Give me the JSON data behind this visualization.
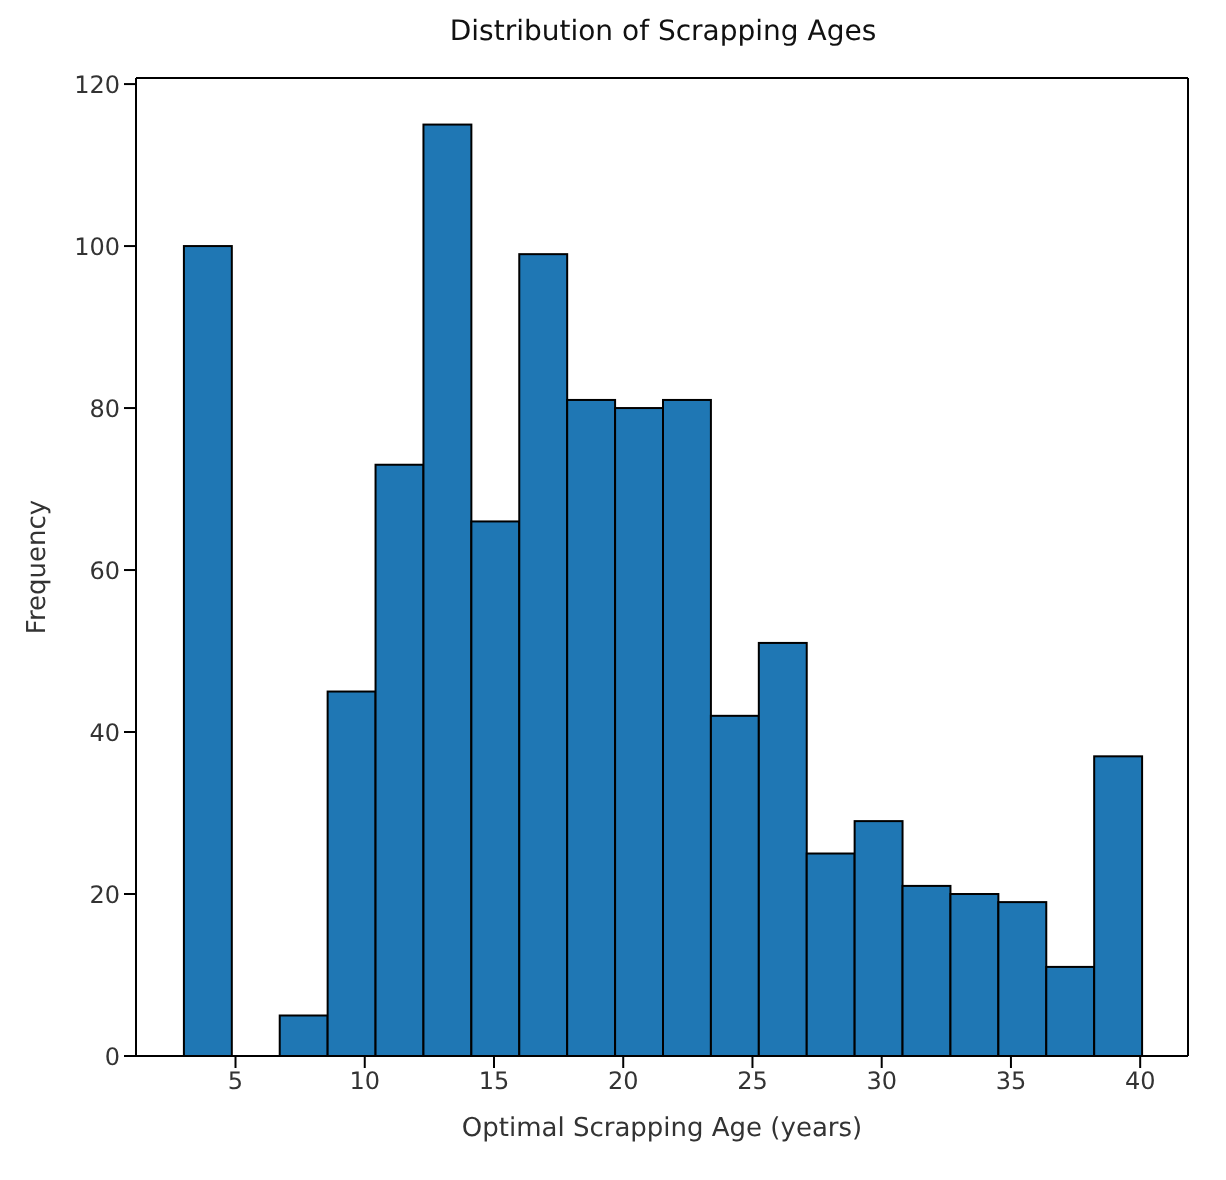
{
  "chart_data": {
    "type": "histogram",
    "title": "Distribution of Scrapping Ages",
    "xlabel": "Optimal Scrapping Age (years)",
    "ylabel": "Frequency",
    "color": "#1f77b4",
    "bins": [
      3,
      4.85,
      6.7,
      8.55,
      10.4,
      12.25,
      14.1,
      15.95,
      17.8,
      19.65,
      21.5,
      23.35,
      25.2,
      27.05,
      28.9,
      30.75,
      32.6,
      34.45,
      36.3,
      38.15,
      40
    ],
    "values": [
      100,
      0,
      5,
      45,
      73,
      115,
      66,
      99,
      81,
      80,
      81,
      42,
      51,
      25,
      29,
      21,
      20,
      19,
      11,
      37
    ],
    "xlim": [
      1.15,
      41.85
    ],
    "xticks": [
      5,
      10,
      15,
      20,
      25,
      30,
      35,
      40
    ],
    "ylim": [
      0,
      120.75
    ],
    "yticks": [
      0,
      20,
      40,
      60,
      80,
      100,
      120
    ],
    "grid": false
  }
}
